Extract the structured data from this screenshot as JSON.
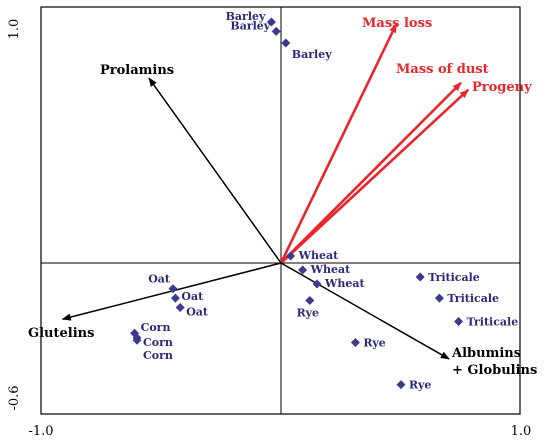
{
  "chart_data": {
    "type": "scatter",
    "title": "",
    "xlabel": "",
    "ylabel": "",
    "xlim": [
      -1.0,
      1.0
    ],
    "ylim": [
      -0.6,
      1.0
    ],
    "x_tick_labels": [
      {
        "value": -1.0,
        "label": "-1.0"
      },
      {
        "value": 1.0,
        "label": "1.0"
      }
    ],
    "y_tick_labels": [
      {
        "value": 1.0,
        "label": "1.0"
      },
      {
        "value": -0.6,
        "label": "-0.6"
      }
    ],
    "samples": [
      {
        "label": "Barley",
        "x": -0.04,
        "y": 1.03
      },
      {
        "label": "Barley",
        "x": -0.02,
        "y": 0.99
      },
      {
        "label": "Barley",
        "x": 0.02,
        "y": 0.94
      },
      {
        "label": "Wheat",
        "x": 0.04,
        "y": 0.03
      },
      {
        "label": "Wheat",
        "x": 0.09,
        "y": -0.03
      },
      {
        "label": "Wheat",
        "x": 0.15,
        "y": -0.09
      },
      {
        "label": "Rye",
        "x": 0.12,
        "y": -0.16
      },
      {
        "label": "Rye",
        "x": 0.31,
        "y": -0.34
      },
      {
        "label": "Rye",
        "x": 0.5,
        "y": -0.52
      },
      {
        "label": "Oat",
        "x": -0.45,
        "y": -0.11
      },
      {
        "label": "Oat",
        "x": -0.44,
        "y": -0.15
      },
      {
        "label": "Oat",
        "x": -0.42,
        "y": -0.19
      },
      {
        "label": "Corn",
        "x": -0.61,
        "y": -0.3
      },
      {
        "label": "Corn",
        "x": -0.6,
        "y": -0.32
      },
      {
        "label": "Corn",
        "x": -0.6,
        "y": -0.33
      },
      {
        "label": "Triticale",
        "x": 0.58,
        "y": -0.06
      },
      {
        "label": "Triticale",
        "x": 0.66,
        "y": -0.15
      },
      {
        "label": "Triticale",
        "x": 0.74,
        "y": -0.25
      }
    ],
    "vectors": [
      {
        "label": "Mass loss",
        "x": 0.48,
        "y": 1.02,
        "color": "#e8262c"
      },
      {
        "label": "Mass of dust",
        "x": 0.75,
        "y": 0.77,
        "color": "#e8262c"
      },
      {
        "label": "Progeny",
        "x": 0.78,
        "y": 0.74,
        "color": "#e8262c"
      },
      {
        "label": "Prolamins",
        "x": -0.55,
        "y": 0.79,
        "color": "#000000"
      },
      {
        "label": "Glutelins",
        "x": -0.91,
        "y": -0.24,
        "color": "#000000"
      },
      {
        "label": "Albumins\n+ Globulins",
        "x": 0.7,
        "y": -0.41,
        "color": "#000000"
      }
    ],
    "grid": false,
    "marker_color": "#3c3a8c"
  }
}
